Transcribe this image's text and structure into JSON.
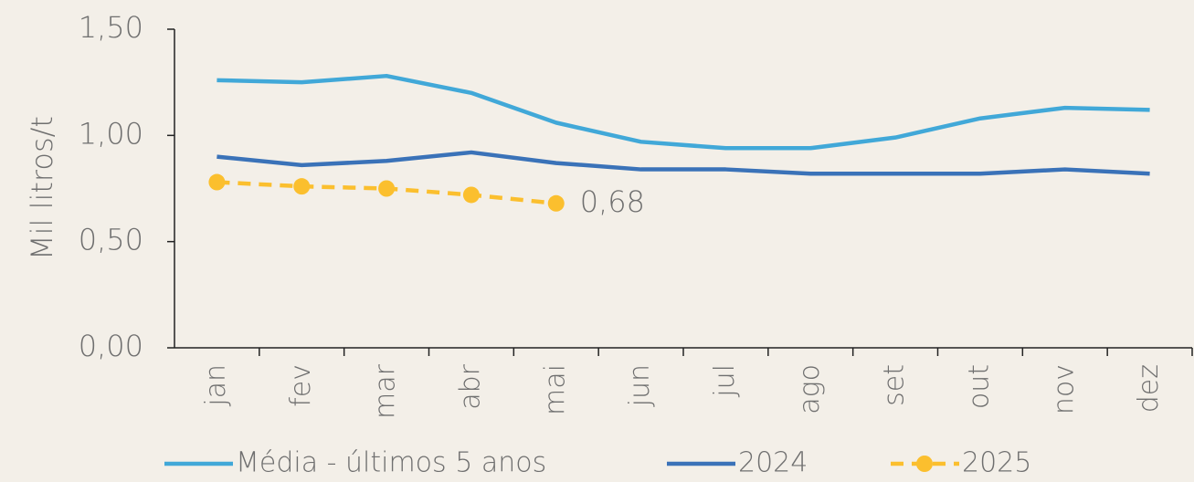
{
  "chart_data": {
    "type": "line",
    "ylabel": "Mil litros/t",
    "categories": [
      "jan",
      "fev",
      "mar",
      "abr",
      "mai",
      "jun",
      "jul",
      "ago",
      "set",
      "out",
      "nov",
      "dez"
    ],
    "series": [
      {
        "name": "Média - últimos 5 anos",
        "color": "#41a8d8",
        "dashed": false,
        "markers": false,
        "values": [
          1.26,
          1.25,
          1.28,
          1.2,
          1.06,
          0.97,
          0.94,
          0.94,
          0.99,
          1.08,
          1.13,
          1.12
        ]
      },
      {
        "name": "2024",
        "color": "#3a72b8",
        "dashed": false,
        "markers": false,
        "values": [
          0.9,
          0.86,
          0.88,
          0.92,
          0.87,
          0.84,
          0.84,
          0.82,
          0.82,
          0.82,
          0.84,
          0.82
        ]
      },
      {
        "name": "2025",
        "color": "#fbbf2e",
        "dashed": true,
        "markers": true,
        "values": [
          0.78,
          0.76,
          0.75,
          0.72,
          0.68,
          null,
          null,
          null,
          null,
          null,
          null,
          null
        ],
        "value_labels": [
          null,
          null,
          null,
          null,
          "0,68",
          null,
          null,
          null,
          null,
          null,
          null,
          null
        ]
      }
    ],
    "ylim": [
      0,
      1.5
    ],
    "yticks": [
      {
        "value": 0,
        "label": "0,00"
      },
      {
        "value": 0.5,
        "label": "0,50"
      },
      {
        "value": 1,
        "label": "1,00"
      },
      {
        "value": 1.5,
        "label": "1,50"
      }
    ],
    "grid": false,
    "legend": "bottom"
  }
}
